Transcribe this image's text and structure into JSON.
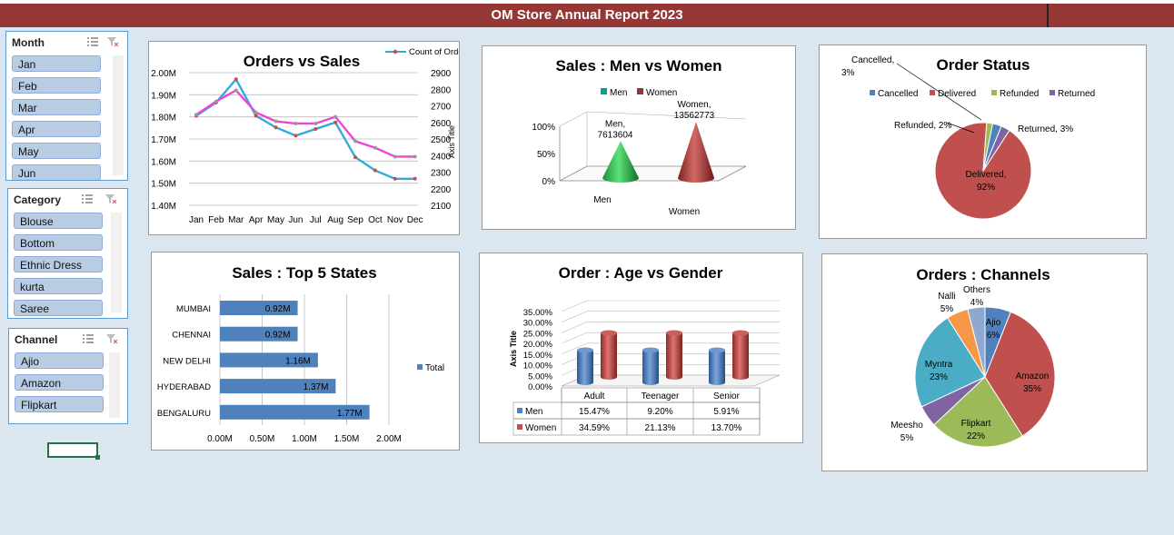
{
  "report_title": "OM Store Annual Report 2023",
  "slicers": {
    "month": {
      "title": "Month",
      "items": [
        "Jan",
        "Feb",
        "Mar",
        "Apr",
        "May",
        "Jun"
      ]
    },
    "category": {
      "title": "Category",
      "items": [
        "Blouse",
        "Bottom",
        "Ethnic Dress",
        "kurta",
        "Saree"
      ]
    },
    "channel": {
      "title": "Channel",
      "items": [
        "Ajio",
        "Amazon",
        "Flipkart"
      ]
    }
  },
  "colors": {
    "banner": "#953735",
    "blue": "#4f81bd",
    "red": "#c0504d",
    "green": "#9bbb59",
    "purple": "#8064a2",
    "teal": "#4bacc6",
    "orange": "#f79646",
    "line_sales": "#33aadd",
    "line_orders": "#ee44dd"
  },
  "chart_data": [
    {
      "id": "orders_vs_sales",
      "type": "line",
      "title": "Orders vs Sales",
      "categories": [
        "Jan",
        "Feb",
        "Mar",
        "Apr",
        "May",
        "Jun",
        "Jul",
        "Aug",
        "Sep",
        "Oct",
        "Nov",
        "Dec"
      ],
      "y_left": {
        "ticks": [
          "1.40M",
          "1.50M",
          "1.60M",
          "1.70M",
          "1.80M",
          "1.90M",
          "2.00M"
        ],
        "ylim": [
          1.4,
          2.0
        ]
      },
      "y_right": {
        "ticks": [
          "2100",
          "2200",
          "2300",
          "2400",
          "2500",
          "2600",
          "2700",
          "2800",
          "2900"
        ],
        "ylim": [
          2100,
          2900
        ],
        "label": "Axis Title"
      },
      "legend": "Count of Order ID",
      "series": [
        {
          "name": "Count of Order ID",
          "axis": "right",
          "values": [
            2640,
            2720,
            2860,
            2640,
            2570,
            2520,
            2560,
            2600,
            2390,
            2310,
            2260,
            2260
          ]
        },
        {
          "name": "",
          "axis": "left",
          "values": [
            1.81,
            1.87,
            1.92,
            1.82,
            1.78,
            1.77,
            1.77,
            1.8,
            1.69,
            1.66,
            1.62,
            1.62
          ]
        }
      ]
    },
    {
      "id": "sales_men_women",
      "type": "bar",
      "title": "Sales : Men vs Women",
      "categories": [
        "Men",
        "Women"
      ],
      "values": [
        7613604,
        13562773
      ],
      "data_labels": [
        "Men,\n7613604",
        "Women,\n13562773"
      ],
      "label_lines": [
        [
          "Men,",
          "7613604"
        ],
        [
          "Women,",
          "13562773"
        ]
      ],
      "y_ticks": [
        "0%",
        "50%",
        "100%"
      ],
      "legend": [
        "Men",
        "Women"
      ]
    },
    {
      "id": "order_status",
      "type": "pie",
      "title": "Order Status",
      "legend": [
        "Cancelled",
        "Delivered",
        "Refunded",
        "Returned"
      ],
      "slices": [
        {
          "name": "Delivered",
          "value": 92,
          "label": [
            "Delivered,",
            "92%"
          ]
        },
        {
          "name": "Refunded",
          "value": 2,
          "label": [
            "Refunded, 2%"
          ]
        },
        {
          "name": "Cancelled",
          "value": 3,
          "label": [
            "Cancelled,",
            "3%"
          ]
        },
        {
          "name": "Returned",
          "value": 3,
          "label": [
            "Returned, 3%"
          ]
        }
      ]
    },
    {
      "id": "top5_states",
      "type": "bar",
      "orientation": "horizontal",
      "title": "Sales : Top 5 States",
      "categories": [
        "MUMBAI",
        "CHENNAI",
        "NEW DELHI",
        "HYDERABAD",
        "BENGALURU"
      ],
      "values": [
        0.92,
        0.92,
        1.16,
        1.37,
        1.77
      ],
      "data_labels": [
        "0.92M",
        "0.92M",
        "1.16M",
        "1.37M",
        "1.77M"
      ],
      "x_ticks": [
        "0.00M",
        "0.50M",
        "1.00M",
        "1.50M",
        "2.00M"
      ],
      "xlim": [
        0,
        2.0
      ],
      "legend": "Total"
    },
    {
      "id": "age_vs_gender",
      "type": "bar",
      "title": "Order : Age vs Gender",
      "categories": [
        "Adult",
        "Teenager",
        "Senior"
      ],
      "y_ticks": [
        "0.00%",
        "5.00%",
        "10.00%",
        "15.00%",
        "20.00%",
        "25.00%",
        "30.00%",
        "35.00%"
      ],
      "ylim": [
        0,
        35
      ],
      "ylabel": "Axis Title",
      "series": [
        {
          "name": "Men",
          "values": [
            15.47,
            9.2,
            5.91
          ],
          "labels": [
            "15.47%",
            "9.20%",
            "5.91%"
          ]
        },
        {
          "name": "Women",
          "values": [
            34.59,
            21.13,
            13.7
          ],
          "labels": [
            "34.59%",
            "21.13%",
            "13.70%"
          ]
        }
      ]
    },
    {
      "id": "channels",
      "type": "pie",
      "title": "Orders : Channels",
      "slices": [
        {
          "name": "Ajio",
          "value": 6,
          "label": [
            "Ajio",
            "6%"
          ]
        },
        {
          "name": "Amazon",
          "value": 35,
          "label": [
            "Amazon",
            "35%"
          ]
        },
        {
          "name": "Flipkart",
          "value": 22,
          "label": [
            "Flipkart",
            "22%"
          ]
        },
        {
          "name": "Meesho",
          "value": 5,
          "label": [
            "Meesho",
            "5%"
          ]
        },
        {
          "name": "Myntra",
          "value": 23,
          "label": [
            "Myntra",
            "23%"
          ]
        },
        {
          "name": "Nalli",
          "value": 5,
          "label": [
            "Nalli",
            "5%"
          ]
        },
        {
          "name": "Others",
          "value": 4,
          "label": [
            "Others",
            "4%"
          ]
        }
      ]
    }
  ]
}
